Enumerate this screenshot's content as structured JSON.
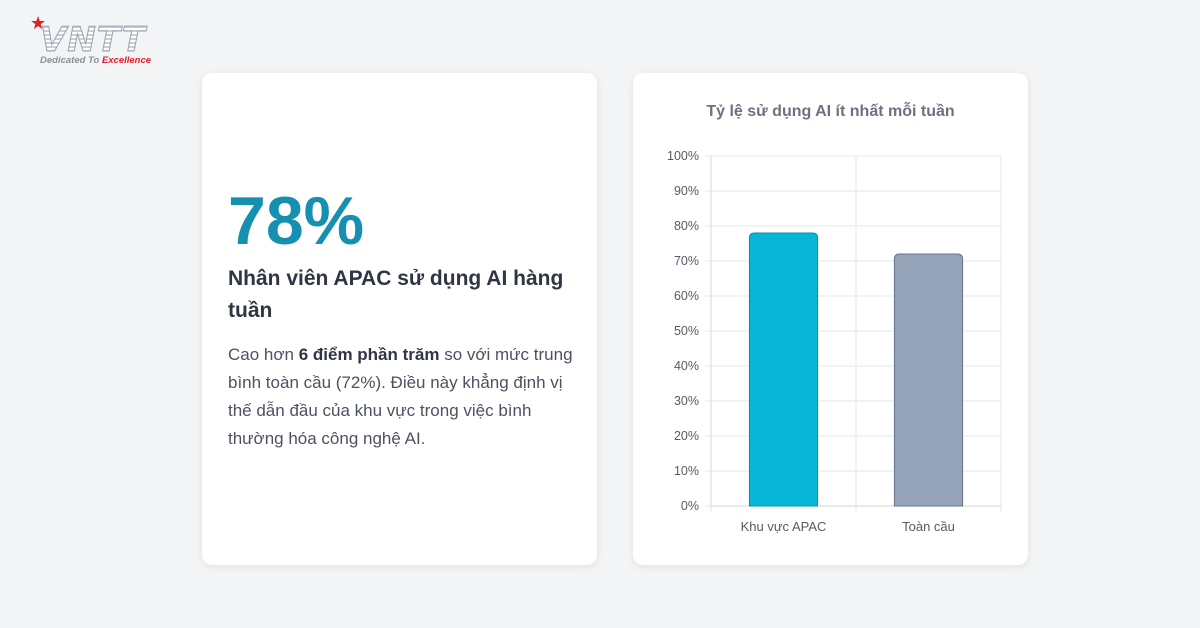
{
  "logo": {
    "wordmark": "VNTT",
    "tagline_prefix": "Dedicated To ",
    "tagline_accent": "Excellence"
  },
  "stat_card": {
    "value": "78%",
    "heading": "Nhân viên APAC sử dụng AI hàng tuần",
    "desc_before": "Cao hơn ",
    "desc_bold": "6 điểm phần trăm",
    "desc_after": " so với mức trung bình toàn cầu (72%). Điều này khẳng định vị thế dẫn đầu của khu vực trong việc bình thường hóa công nghệ AI."
  },
  "colors": {
    "accent": "#1590b0",
    "bar_apac": "#06b6d4",
    "bar_global": "#94a3b8"
  },
  "chart_data": {
    "type": "bar",
    "title": "Tỷ lệ sử dụng AI ít nhất mỗi tuần",
    "categories": [
      "Khu vực APAC",
      "Toàn cầu"
    ],
    "values": [
      78,
      72
    ],
    "ylim": [
      0,
      100
    ],
    "yticks": [
      "0%",
      "10%",
      "20%",
      "30%",
      "40%",
      "50%",
      "60%",
      "70%",
      "80%",
      "90%",
      "100%"
    ],
    "grid": true,
    "legend": "none"
  }
}
